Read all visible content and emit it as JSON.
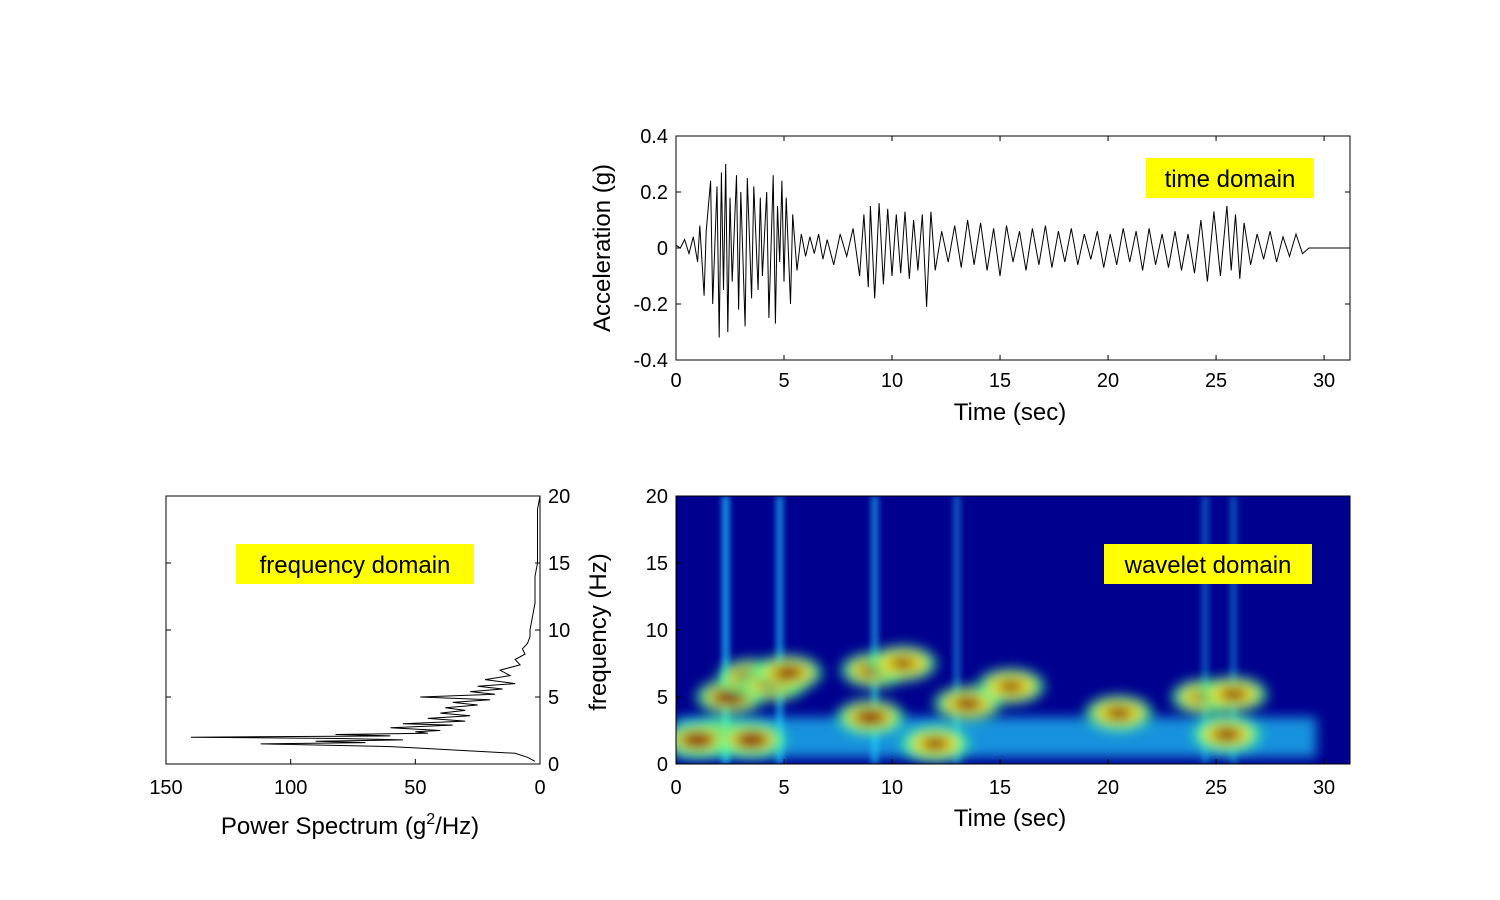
{
  "chart_data": [
    {
      "type": "line",
      "id": "time_domain",
      "title": "",
      "annotation": "time domain",
      "xlabel": "Time (sec)",
      "ylabel": "Acceleration (g)",
      "xlim": [
        0,
        31.2
      ],
      "ylim": [
        -0.4,
        0.4
      ],
      "xticks": [
        "0",
        "5",
        "10",
        "15",
        "20",
        "25",
        "30"
      ],
      "yticks": [
        "-0.4",
        "-0.2",
        "0",
        "0.2",
        "0.4"
      ],
      "grid": false,
      "series_color": "#000000",
      "x": [
        0,
        0.2,
        0.4,
        0.6,
        0.8,
        1.0,
        1.1,
        1.3,
        1.4,
        1.6,
        1.7,
        1.9,
        2.0,
        2.1,
        2.2,
        2.3,
        2.4,
        2.5,
        2.6,
        2.8,
        2.9,
        3.0,
        3.2,
        3.3,
        3.5,
        3.6,
        3.8,
        3.9,
        4.0,
        4.2,
        4.3,
        4.5,
        4.6,
        4.7,
        4.8,
        4.9,
        5.0,
        5.1,
        5.3,
        5.4,
        5.6,
        5.8,
        6.0,
        6.2,
        6.4,
        6.6,
        6.8,
        7.0,
        7.3,
        7.6,
        7.9,
        8.2,
        8.5,
        8.7,
        8.9,
        9.0,
        9.2,
        9.4,
        9.6,
        9.8,
        10.0,
        10.2,
        10.4,
        10.6,
        10.8,
        11.0,
        11.2,
        11.4,
        11.6,
        11.8,
        12.0,
        12.3,
        12.6,
        12.9,
        13.2,
        13.5,
        13.8,
        14.1,
        14.4,
        14.7,
        15.0,
        15.3,
        15.6,
        15.9,
        16.2,
        16.5,
        16.8,
        17.1,
        17.4,
        17.7,
        18.0,
        18.3,
        18.6,
        18.9,
        19.2,
        19.5,
        19.8,
        20.1,
        20.4,
        20.7,
        21.0,
        21.3,
        21.6,
        21.9,
        22.2,
        22.5,
        22.8,
        23.1,
        23.4,
        23.7,
        24.0,
        24.3,
        24.6,
        24.9,
        25.2,
        25.5,
        25.7,
        25.9,
        26.1,
        26.3,
        26.6,
        26.9,
        27.2,
        27.5,
        27.8,
        28.1,
        28.4,
        28.7,
        29.0,
        29.3,
        29.6,
        30.0,
        30.5,
        31.2
      ],
      "y": [
        0.01,
        0.0,
        0.03,
        -0.02,
        0.04,
        -0.05,
        0.08,
        -0.17,
        0.06,
        0.24,
        -0.2,
        0.22,
        -0.32,
        0.27,
        -0.15,
        0.3,
        -0.3,
        0.18,
        -0.12,
        0.26,
        -0.22,
        0.2,
        -0.28,
        0.25,
        -0.18,
        0.22,
        -0.15,
        0.18,
        -0.1,
        0.2,
        -0.25,
        0.26,
        -0.27,
        0.15,
        -0.05,
        0.24,
        -0.12,
        0.18,
        -0.2,
        0.12,
        -0.08,
        0.05,
        -0.03,
        0.04,
        -0.02,
        0.05,
        -0.04,
        0.03,
        -0.06,
        0.05,
        -0.03,
        0.07,
        -0.1,
        0.12,
        -0.14,
        0.15,
        -0.18,
        0.16,
        -0.13,
        0.14,
        -0.1,
        0.12,
        -0.09,
        0.13,
        -0.11,
        0.1,
        -0.08,
        0.12,
        -0.21,
        0.13,
        -0.08,
        0.06,
        -0.05,
        0.08,
        -0.07,
        0.1,
        -0.06,
        0.09,
        -0.08,
        0.07,
        -0.1,
        0.08,
        -0.05,
        0.06,
        -0.08,
        0.07,
        -0.06,
        0.08,
        -0.07,
        0.06,
        -0.05,
        0.07,
        -0.06,
        0.05,
        -0.04,
        0.06,
        -0.07,
        0.05,
        -0.06,
        0.07,
        -0.05,
        0.06,
        -0.08,
        0.07,
        -0.06,
        0.05,
        -0.07,
        0.06,
        -0.08,
        0.05,
        -0.09,
        0.1,
        -0.12,
        0.13,
        -0.1,
        0.15,
        -0.08,
        0.12,
        -0.11,
        0.09,
        -0.06,
        0.05,
        -0.04,
        0.06,
        -0.05,
        0.04,
        -0.03,
        0.05,
        -0.02,
        0.0,
        0.0,
        0.0,
        0.0,
        0.0
      ]
    },
    {
      "type": "line",
      "id": "frequency_domain",
      "title": "",
      "annotation": "frequency domain",
      "xlabel_main": "Power Spectrum (g",
      "xlabel_sup": "2",
      "xlabel_tail": "/Hz)",
      "orientation": "horizontal, x-axis reversed",
      "xlim": [
        150,
        0
      ],
      "ylim": [
        0,
        20
      ],
      "xticks": [
        "150",
        "100",
        "50",
        "0"
      ],
      "yticks": [
        "0",
        "5",
        "10",
        "15",
        "20"
      ],
      "grid": false,
      "series_color": "#000000",
      "freq": [
        0.2,
        0.5,
        0.8,
        1.0,
        1.2,
        1.3,
        1.4,
        1.5,
        1.6,
        1.7,
        1.8,
        1.9,
        2.0,
        2.1,
        2.2,
        2.3,
        2.4,
        2.5,
        2.7,
        2.9,
        3.0,
        3.2,
        3.4,
        3.6,
        3.8,
        4.0,
        4.2,
        4.4,
        4.6,
        4.8,
        5.0,
        5.2,
        5.4,
        5.6,
        5.8,
        6.0,
        6.3,
        6.6,
        7.0,
        7.4,
        7.8,
        8.2,
        8.6,
        9.0,
        9.5,
        10.0,
        11.0,
        12.0,
        13.0,
        14.0,
        15.0,
        16.0,
        17.0,
        18.0,
        19.0,
        20.0
      ],
      "power": [
        2,
        5,
        10,
        30,
        50,
        60,
        85,
        112,
        70,
        90,
        55,
        80,
        140,
        60,
        82,
        45,
        50,
        40,
        60,
        35,
        55,
        30,
        45,
        28,
        40,
        30,
        38,
        25,
        35,
        20,
        48,
        18,
        28,
        15,
        25,
        10,
        22,
        12,
        16,
        8,
        10,
        6,
        7,
        5,
        4,
        4,
        3,
        2,
        2,
        2,
        1,
        1,
        1,
        1,
        1,
        0
      ]
    },
    {
      "type": "heatmap",
      "id": "wavelet_domain",
      "title": "",
      "annotation": "wavelet domain",
      "xlabel": "Time (sec)",
      "ylabel": "frequency (Hz)",
      "xlim": [
        0,
        31.2
      ],
      "ylim": [
        0,
        20
      ],
      "xticks": [
        "0",
        "5",
        "10",
        "15",
        "20",
        "25",
        "30"
      ],
      "yticks": [
        "0",
        "5",
        "10",
        "15",
        "20"
      ],
      "colormap": "jet",
      "background_color": "#00008f",
      "hot_spots": [
        {
          "t": 2.0,
          "f": 2.0,
          "amp": 1.0
        },
        {
          "t": 2.5,
          "f": 5.0,
          "amp": 1.0
        },
        {
          "t": 3.5,
          "f": 6.5,
          "amp": 0.95
        },
        {
          "t": 4.5,
          "f": 6.0,
          "amp": 0.9
        },
        {
          "t": 5.2,
          "f": 6.8,
          "amp": 0.85
        },
        {
          "t": 1.0,
          "f": 1.8,
          "amp": 0.95
        },
        {
          "t": 3.5,
          "f": 1.8,
          "amp": 0.95
        },
        {
          "t": 9.0,
          "f": 3.5,
          "amp": 0.9
        },
        {
          "t": 9.2,
          "f": 7.0,
          "amp": 0.85
        },
        {
          "t": 10.5,
          "f": 7.5,
          "amp": 0.7
        },
        {
          "t": 12.0,
          "f": 1.5,
          "amp": 0.75
        },
        {
          "t": 13.5,
          "f": 4.5,
          "amp": 0.8
        },
        {
          "t": 15.5,
          "f": 5.8,
          "amp": 0.7
        },
        {
          "t": 20.5,
          "f": 3.8,
          "amp": 0.75
        },
        {
          "t": 24.5,
          "f": 5.0,
          "amp": 0.75
        },
        {
          "t": 25.5,
          "f": 2.2,
          "amp": 0.8
        },
        {
          "t": 25.8,
          "f": 5.2,
          "amp": 0.75
        }
      ],
      "ridges": [
        {
          "t": 2.3,
          "amp": 0.7
        },
        {
          "t": 4.8,
          "amp": 0.6
        },
        {
          "t": 9.2,
          "amp": 0.55
        },
        {
          "t": 13.0,
          "amp": 0.4
        },
        {
          "t": 24.5,
          "amp": 0.35
        },
        {
          "t": 25.8,
          "amp": 0.35
        }
      ]
    }
  ],
  "annotation_bg": "#ffff00"
}
